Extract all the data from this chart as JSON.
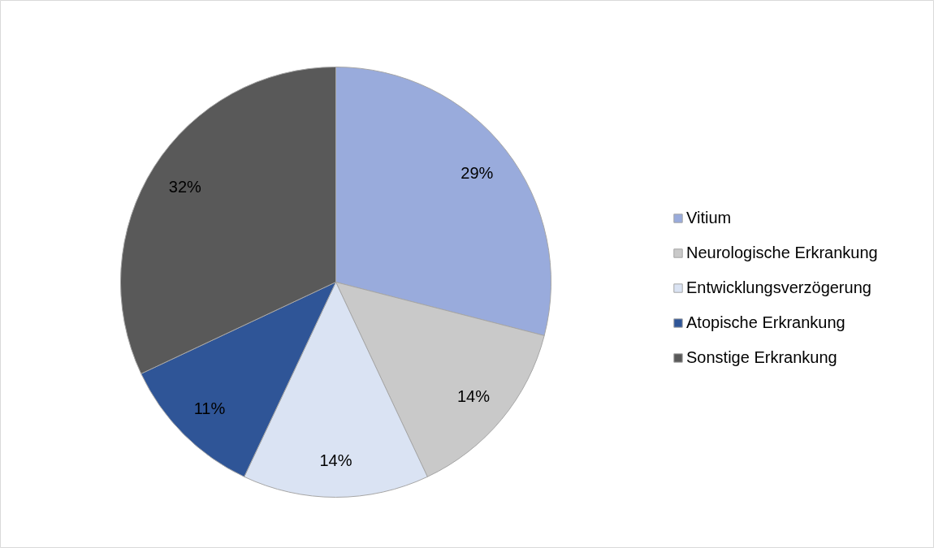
{
  "chart_data": {
    "type": "pie",
    "categories": [
      "Vitium",
      "Neurologische Erkrankung",
      "Entwicklungsverzögerung",
      "Atopische Erkrankung",
      "Sonstige Erkrankung"
    ],
    "values": [
      29,
      14,
      14,
      11,
      32
    ],
    "colors": [
      "#99abdc",
      "#c9c9c9",
      "#dae3f3",
      "#2f5597",
      "#595959"
    ],
    "value_labels": [
      "29%",
      "14%",
      "14%",
      "11%",
      "32%"
    ],
    "legend": "right"
  }
}
